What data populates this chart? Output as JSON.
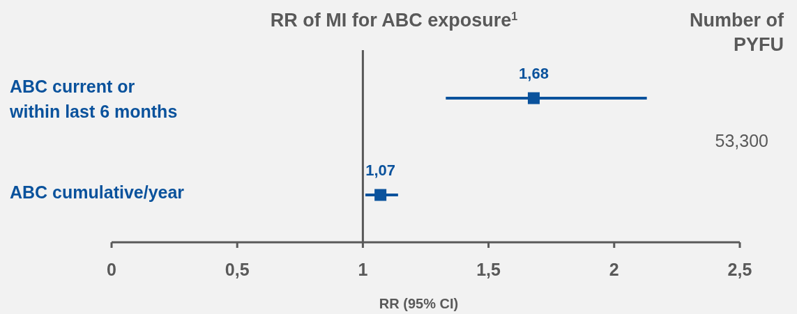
{
  "chart_data": {
    "type": "scatter",
    "orientation": "horizontal",
    "title": "RR of MI for ABC exposure$^{1}$",
    "xlabel": "RR (95% CI)",
    "categories": [
      "ABC current or within last 6 months",
      "ABC cumulative/year"
    ],
    "values": [
      1.68,
      1.07
    ],
    "errors": [
      [
        1.33,
        2.13
      ],
      [
        1.01,
        1.14
      ]
    ],
    "value_labels": [
      "1,68",
      "1,07"
    ],
    "color": "#0a529c",
    "marker": "square",
    "xlim": [
      0,
      2.5
    ],
    "xticks": [
      0,
      {
        "value": 0.5,
        "label": "0,5"
      },
      1,
      {
        "value": 1.5,
        "label": "1,5"
      },
      2,
      {
        "value": 2.5,
        "label": "2,5"
      }
    ],
    "ref_lines": [
      {
        "axis": "x",
        "value": 1,
        "color": "#595959"
      }
    ],
    "annotations": [
      "Number of PYFU",
      "53,300"
    ],
    "grid": false
  }
}
